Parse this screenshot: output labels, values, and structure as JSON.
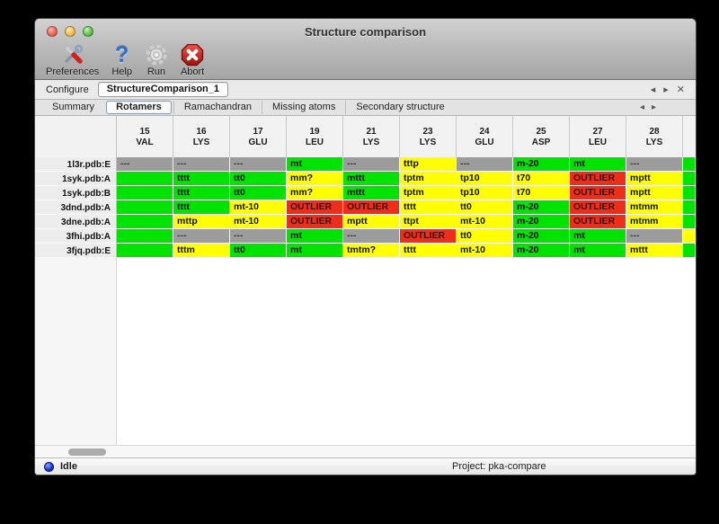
{
  "window": {
    "title": "Structure comparison"
  },
  "traffic_lights": [
    {
      "name": "close"
    },
    {
      "name": "minimize"
    },
    {
      "name": "zoom"
    }
  ],
  "toolbar": {
    "items": [
      {
        "label": "Preferences",
        "icon": "tools-icon"
      },
      {
        "label": "Help",
        "icon": "question-icon"
      },
      {
        "label": "Run",
        "icon": "gear-icon"
      },
      {
        "label": "Abort",
        "icon": "stop-icon"
      }
    ]
  },
  "configure": {
    "label": "Configure",
    "value": "StructureComparison_1"
  },
  "pane_controls": {
    "prev": "◂",
    "next": "▸",
    "close": "✕"
  },
  "tab_controls": {
    "prev": "◂",
    "next": "▸"
  },
  "tabs": [
    {
      "label": "Summary",
      "selected": false
    },
    {
      "label": "Rotamers",
      "selected": true
    },
    {
      "label": "Ramachandran",
      "selected": false
    },
    {
      "label": "Missing atoms",
      "selected": false
    },
    {
      "label": "Secondary structure",
      "selected": false
    }
  ],
  "legend_colors": {
    "ok": "#00e300",
    "warn": "#ffff00",
    "outlier": "#ee2e1b",
    "missing": "#9c9c9c"
  },
  "table": {
    "columns": [
      {
        "number": "15",
        "residue": "VAL"
      },
      {
        "number": "16",
        "residue": "LYS"
      },
      {
        "number": "17",
        "residue": "GLU"
      },
      {
        "number": "19",
        "residue": "LEU"
      },
      {
        "number": "21",
        "residue": "LYS"
      },
      {
        "number": "23",
        "residue": "LYS"
      },
      {
        "number": "24",
        "residue": "GLU"
      },
      {
        "number": "25",
        "residue": "ASP"
      },
      {
        "number": "27",
        "residue": "LEU"
      },
      {
        "number": "28",
        "residue": "LYS"
      }
    ],
    "rows": [
      {
        "label": "1l3r.pdb:E",
        "partial": "ok",
        "cells": [
          {
            "text": "---",
            "status": "missing"
          },
          {
            "text": "---",
            "status": "missing"
          },
          {
            "text": "---",
            "status": "missing"
          },
          {
            "text": "mt",
            "status": "ok"
          },
          {
            "text": "---",
            "status": "missing"
          },
          {
            "text": "tttp",
            "status": "warn"
          },
          {
            "text": "---",
            "status": "missing"
          },
          {
            "text": "m-20",
            "status": "ok"
          },
          {
            "text": "mt",
            "status": "ok"
          },
          {
            "text": "---",
            "status": "missing"
          }
        ]
      },
      {
        "label": "1syk.pdb:A",
        "partial": "ok",
        "cells": [
          {
            "text": "",
            "status": "ok"
          },
          {
            "text": "tttt",
            "status": "ok"
          },
          {
            "text": "tt0",
            "status": "ok"
          },
          {
            "text": "mm?",
            "status": "warn"
          },
          {
            "text": "mttt",
            "status": "ok"
          },
          {
            "text": "tptm",
            "status": "warn"
          },
          {
            "text": "tp10",
            "status": "warn"
          },
          {
            "text": "t70",
            "status": "warn"
          },
          {
            "text": "OUTLIER",
            "status": "outlier"
          },
          {
            "text": "mptt",
            "status": "warn"
          }
        ]
      },
      {
        "label": "1syk.pdb:B",
        "partial": "ok",
        "cells": [
          {
            "text": "",
            "status": "ok"
          },
          {
            "text": "tttt",
            "status": "ok"
          },
          {
            "text": "tt0",
            "status": "ok"
          },
          {
            "text": "mm?",
            "status": "warn"
          },
          {
            "text": "mttt",
            "status": "ok"
          },
          {
            "text": "tptm",
            "status": "warn"
          },
          {
            "text": "tp10",
            "status": "warn"
          },
          {
            "text": "t70",
            "status": "warn"
          },
          {
            "text": "OUTLIER",
            "status": "outlier"
          },
          {
            "text": "mptt",
            "status": "warn"
          }
        ]
      },
      {
        "label": "3dnd.pdb:A",
        "partial": "ok",
        "cells": [
          {
            "text": "",
            "status": "ok"
          },
          {
            "text": "tttt",
            "status": "ok"
          },
          {
            "text": "mt-10",
            "status": "warn"
          },
          {
            "text": "OUTLIER",
            "status": "outlier"
          },
          {
            "text": "OUTLIER",
            "status": "outlier"
          },
          {
            "text": "tttt",
            "status": "warn"
          },
          {
            "text": "tt0",
            "status": "warn"
          },
          {
            "text": "m-20",
            "status": "ok"
          },
          {
            "text": "OUTLIER",
            "status": "outlier"
          },
          {
            "text": "mtmm",
            "status": "warn"
          }
        ]
      },
      {
        "label": "3dne.pdb:A",
        "partial": "ok",
        "cells": [
          {
            "text": "",
            "status": "ok"
          },
          {
            "text": "mttp",
            "status": "warn"
          },
          {
            "text": "mt-10",
            "status": "warn"
          },
          {
            "text": "OUTLIER",
            "status": "outlier"
          },
          {
            "text": "mptt",
            "status": "warn"
          },
          {
            "text": "ttpt",
            "status": "warn"
          },
          {
            "text": "mt-10",
            "status": "warn"
          },
          {
            "text": "m-20",
            "status": "ok"
          },
          {
            "text": "OUTLIER",
            "status": "outlier"
          },
          {
            "text": "mtmm",
            "status": "warn"
          }
        ]
      },
      {
        "label": "3fhi.pdb:A",
        "partial": "warn",
        "cells": [
          {
            "text": "",
            "status": "ok"
          },
          {
            "text": "---",
            "status": "missing"
          },
          {
            "text": "---",
            "status": "missing"
          },
          {
            "text": "mt",
            "status": "ok"
          },
          {
            "text": "---",
            "status": "missing"
          },
          {
            "text": "OUTLIER",
            "status": "outlier"
          },
          {
            "text": "tt0",
            "status": "warn"
          },
          {
            "text": "m-20",
            "status": "ok"
          },
          {
            "text": "mt",
            "status": "ok"
          },
          {
            "text": "---",
            "status": "missing"
          }
        ]
      },
      {
        "label": "3fjq.pdb:E",
        "partial": "ok",
        "cells": [
          {
            "text": "",
            "status": "ok"
          },
          {
            "text": "tttm",
            "status": "warn"
          },
          {
            "text": "tt0",
            "status": "ok"
          },
          {
            "text": "mt",
            "status": "ok"
          },
          {
            "text": "tmtm?",
            "status": "warn"
          },
          {
            "text": "tttt",
            "status": "warn"
          },
          {
            "text": "mt-10",
            "status": "warn"
          },
          {
            "text": "m-20",
            "status": "ok"
          },
          {
            "text": "mt",
            "status": "ok"
          },
          {
            "text": "mttt",
            "status": "warn"
          }
        ]
      }
    ]
  },
  "status_bar": {
    "state": "Idle",
    "project": "Project: pka-compare"
  }
}
